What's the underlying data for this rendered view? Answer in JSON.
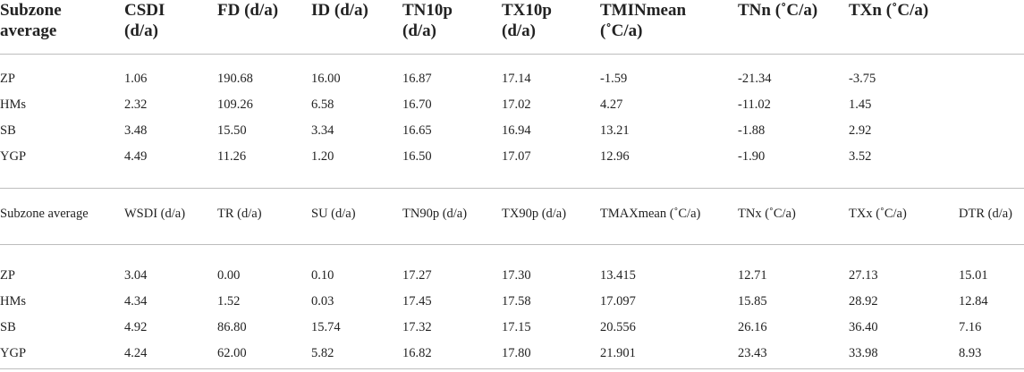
{
  "table1": {
    "header": [
      [
        "Subzone",
        "average"
      ],
      [
        "CSDI",
        "(d/a)"
      ],
      [
        "FD (d/a)"
      ],
      [
        "ID (d/a)"
      ],
      [
        "TN10p",
        "(d/a)"
      ],
      [
        "TX10p",
        "(d/a)"
      ],
      [
        "TMINmean",
        "(˚C/a)"
      ],
      [
        "TNn (˚C/a)"
      ],
      [
        "TXn (˚C/a)"
      ]
    ],
    "rows": [
      [
        "ZP",
        "1.06",
        "190.68",
        "16.00",
        "16.87",
        "17.14",
        "-1.59",
        "-21.34",
        "-3.75"
      ],
      [
        "HMs",
        "2.32",
        "109.26",
        "6.58",
        "16.70",
        "17.02",
        "4.27",
        "-11.02",
        "1.45"
      ],
      [
        "SB",
        "3.48",
        "15.50",
        "3.34",
        "16.65",
        "16.94",
        "13.21",
        "-1.88",
        "2.92"
      ],
      [
        "YGP",
        "4.49",
        "11.26",
        "1.20",
        "16.50",
        "17.07",
        "12.96",
        "-1.90",
        "3.52"
      ]
    ]
  },
  "table2": {
    "header": [
      "Subzone average",
      "WSDI (d/a)",
      "TR (d/a)",
      "SU (d/a)",
      "TN90p (d/a)",
      "TX90p (d/a)",
      "TMAXmean (˚C/a)",
      "TNx (˚C/a)",
      "TXx (˚C/a)",
      "DTR (d/a)"
    ],
    "rows": [
      [
        "ZP",
        "3.04",
        "0.00",
        "0.10",
        "17.27",
        "17.30",
        "13.415",
        "12.71",
        "27.13",
        "15.01"
      ],
      [
        "HMs",
        "4.34",
        "1.52",
        "0.03",
        "17.45",
        "17.58",
        "17.097",
        "15.85",
        "28.92",
        "12.84"
      ],
      [
        "SB",
        "4.92",
        "86.80",
        "15.74",
        "17.32",
        "17.15",
        "20.556",
        "26.16",
        "36.40",
        "7.16"
      ],
      [
        "YGP",
        "4.24",
        "62.00",
        "5.82",
        "16.82",
        "17.80",
        "21.901",
        "23.43",
        "33.98",
        "8.93"
      ]
    ]
  }
}
